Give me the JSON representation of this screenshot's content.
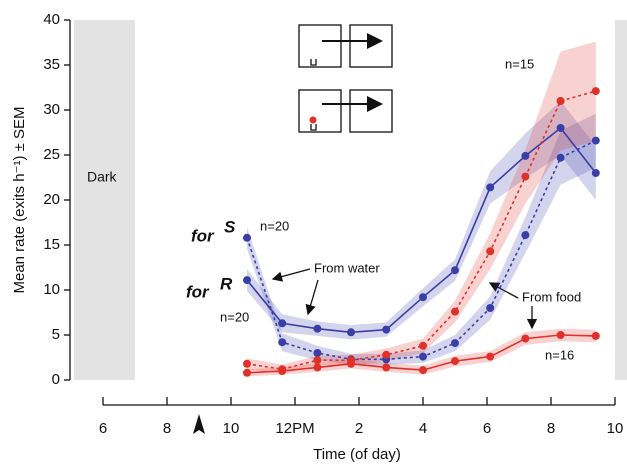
{
  "chart_data": {
    "type": "line",
    "ylabel": "Mean rate (exits h⁻¹) ± SEM",
    "xlabel": "Time (of day)",
    "ylim": [
      0,
      40
    ],
    "yticks": [
      0,
      5,
      10,
      15,
      20,
      25,
      30,
      35,
      40
    ],
    "xlim": [
      5,
      22.5
    ],
    "xticks": [
      6,
      8,
      10,
      {
        "value": 12,
        "label": "12PM"
      },
      {
        "value": 14,
        "label": "2"
      },
      {
        "value": 16,
        "label": "4"
      },
      {
        "value": 18,
        "label": "6"
      },
      {
        "value": 20,
        "label": "8"
      },
      {
        "value": 22,
        "label": "10"
      }
    ],
    "dark_periods": [
      [
        5,
        7
      ],
      [
        22,
        22.5
      ]
    ],
    "dark_label": "Dark",
    "arrow_at": 9,
    "x": [
      10.5,
      11.6,
      12.7,
      13.75,
      14.85,
      16,
      17,
      18.1,
      19.2,
      20.3,
      21.4
    ],
    "series": [
      {
        "color": "#3a3fa8",
        "dash": false,
        "values": [
          11.1,
          6.3,
          5.7,
          5.3,
          5.6,
          9.2,
          12.2,
          21.4,
          24.9,
          28,
          23
        ],
        "sem": [
          1.2,
          1.0,
          0.8,
          0.8,
          0.8,
          1.0,
          1.2,
          1.8,
          2.5,
          3.0,
          3.0
        ]
      },
      {
        "color": "#3a3fa8",
        "dash": true,
        "values": [
          15.8,
          4.2,
          3.0,
          2.3,
          2.3,
          2.6,
          4.1,
          8.0,
          16.1,
          24.7,
          26.6
        ],
        "sem": [
          1.2,
          1.0,
          0.8,
          0.6,
          0.6,
          0.7,
          0.9,
          1.3,
          2.0,
          3.0,
          3.0
        ]
      },
      {
        "color": "#e0302a",
        "dash": true,
        "values": [
          1.8,
          1.2,
          2.2,
          2.2,
          2.8,
          3.8,
          7.6,
          14.3,
          22.6,
          31.0,
          32.1
        ],
        "sem": [
          0.6,
          0.5,
          0.5,
          0.6,
          0.7,
          0.8,
          1.2,
          2,
          3,
          5.5,
          5.5
        ]
      },
      {
        "color": "#e0302a",
        "dash": false,
        "values": [
          0.8,
          1.0,
          1.4,
          1.8,
          1.4,
          1.1,
          2.1,
          2.6,
          4.6,
          5.0,
          4.9
        ],
        "sem": [
          0.4,
          0.4,
          0.5,
          0.5,
          0.5,
          0.5,
          0.6,
          0.6,
          0.7,
          0.7,
          0.7
        ]
      }
    ],
    "annotations": {
      "for_s": "for",
      "s": "S",
      "for_r": "for",
      "r": "R",
      "n_top": "n=20",
      "n_mid": "n=20",
      "n15": "n=15",
      "n16": "n=16",
      "water": "From water",
      "food": "From food"
    }
  }
}
